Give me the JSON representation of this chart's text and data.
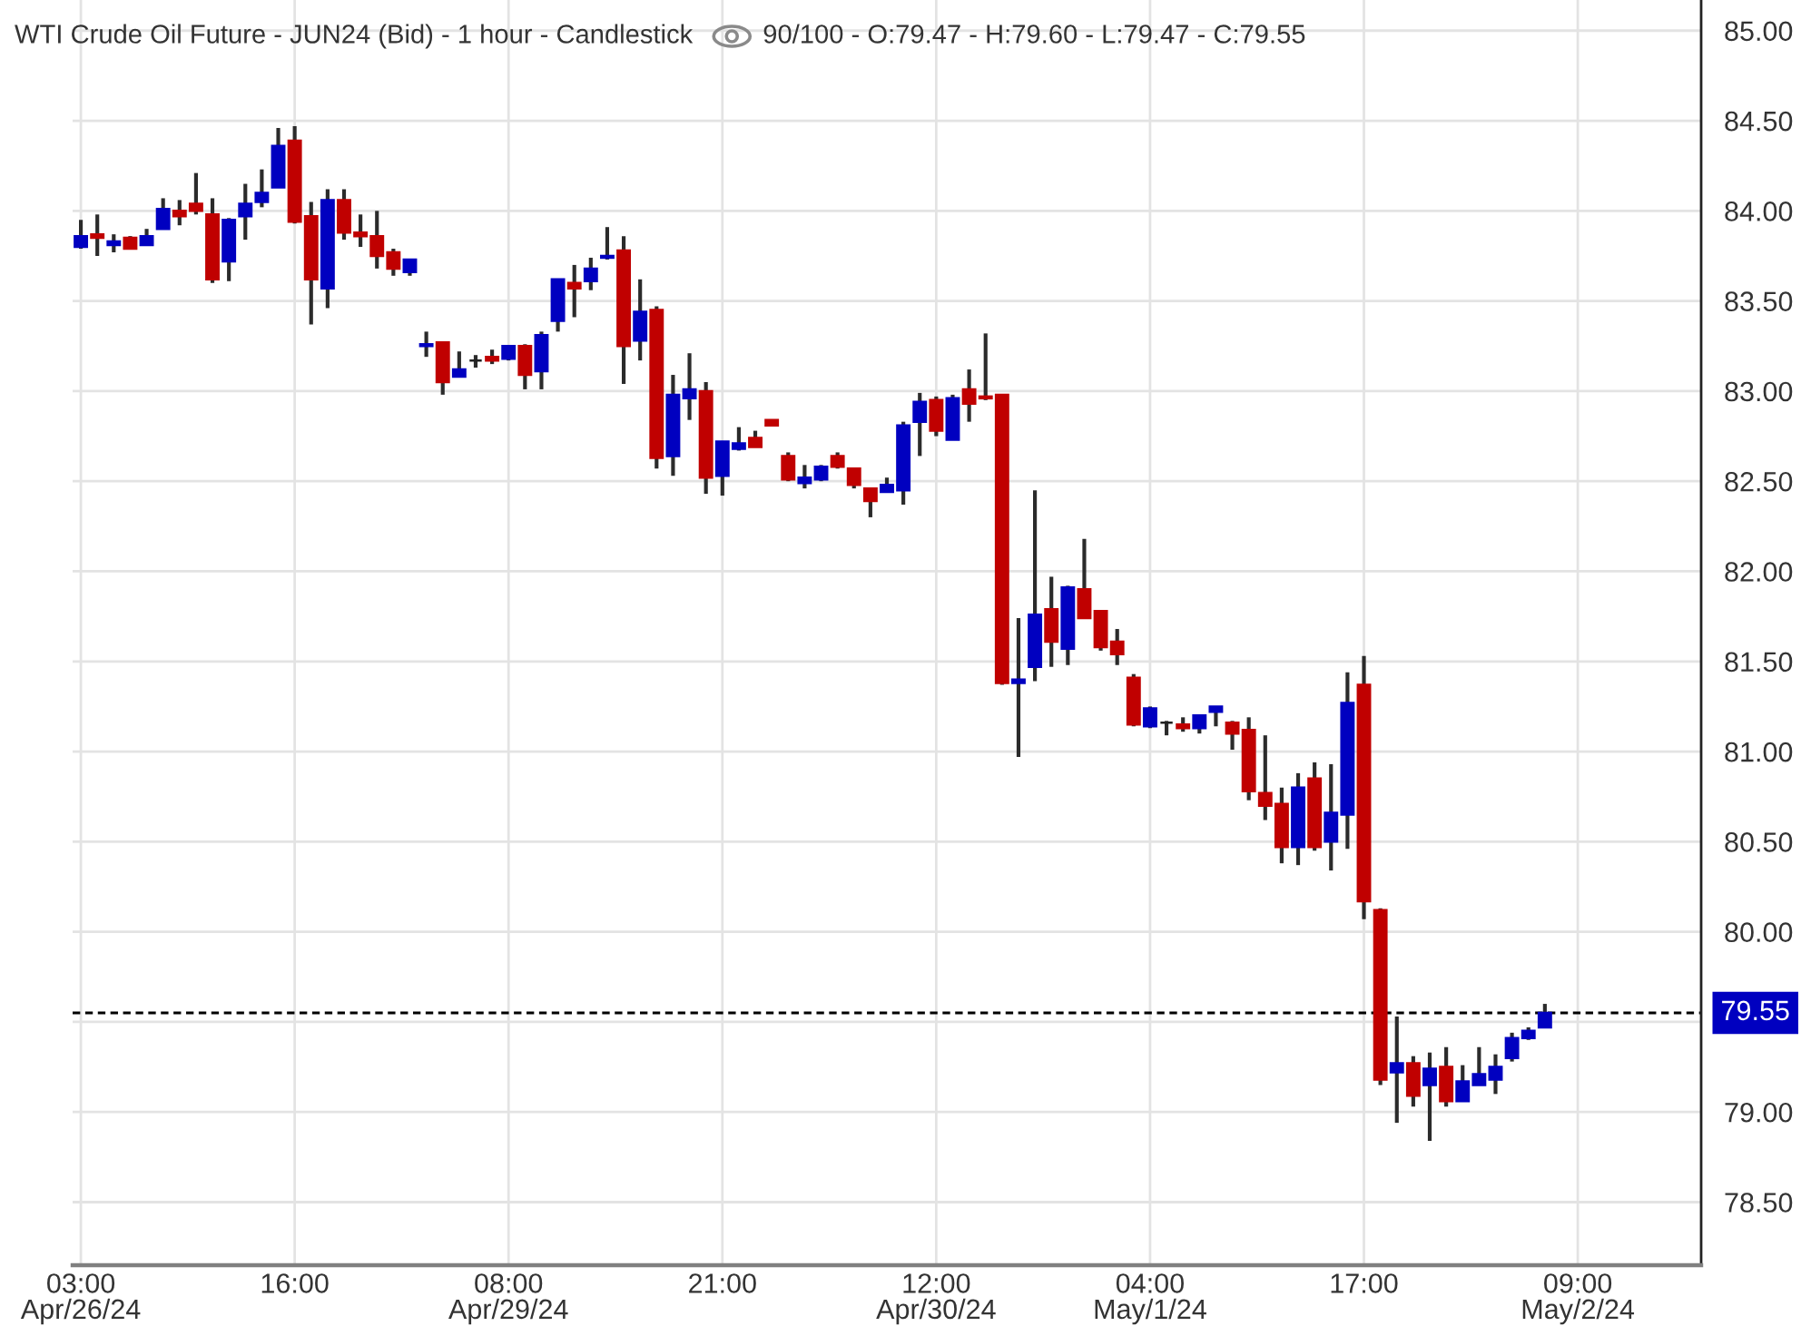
{
  "chart_data": {
    "type": "candlestick",
    "title": "WTI Crude Oil Future - JUN24 (Bid) - 1 hour - Candlestick",
    "subtitle": "90/100 - O:79.47 - H:79.60 - L:79.47 - C:79.55",
    "categories": [
      "03:00\nApr/26/24",
      null,
      null,
      null,
      null,
      null,
      null,
      null,
      null,
      null,
      null,
      null,
      null,
      "16:00",
      null,
      null,
      null,
      null,
      null,
      null,
      null,
      null,
      null,
      null,
      null,
      null,
      "08:00\nApr/29/24",
      null,
      null,
      null,
      null,
      null,
      null,
      null,
      null,
      null,
      null,
      null,
      null,
      "21:00",
      null,
      null,
      null,
      null,
      null,
      null,
      null,
      null,
      null,
      null,
      null,
      null,
      "12:00\nApr/30/24",
      null,
      null,
      null,
      null,
      null,
      null,
      null,
      null,
      null,
      null,
      null,
      null,
      "04:00\nMay/1/24",
      null,
      null,
      null,
      null,
      null,
      null,
      null,
      null,
      null,
      null,
      null,
      null,
      "17:00",
      null,
      null,
      null,
      null,
      null,
      null,
      null,
      null,
      null,
      null,
      null,
      null,
      "09:00\nMay/2/24",
      null,
      null,
      null,
      null,
      null,
      null,
      null
    ],
    "ohlc": [
      [
        83.8,
        83.95,
        83.79,
        83.86
      ],
      [
        83.87,
        83.98,
        83.75,
        83.85
      ],
      [
        83.81,
        83.87,
        83.77,
        83.83
      ],
      [
        83.85,
        83.86,
        83.79,
        83.79
      ],
      [
        83.81,
        83.9,
        83.81,
        83.86
      ],
      [
        83.9,
        84.07,
        83.9,
        84.01
      ],
      [
        84.0,
        84.06,
        83.92,
        83.97
      ],
      [
        84.04,
        84.21,
        83.98,
        84.0
      ],
      [
        83.98,
        84.07,
        83.6,
        83.62
      ],
      [
        83.72,
        83.96,
        83.61,
        83.95
      ],
      [
        83.97,
        84.15,
        83.84,
        84.04
      ],
      [
        84.05,
        84.23,
        84.02,
        84.1
      ],
      [
        84.13,
        84.46,
        84.13,
        84.36
      ],
      [
        84.39,
        84.47,
        83.93,
        83.94
      ],
      [
        83.97,
        84.05,
        83.37,
        83.62
      ],
      [
        83.57,
        84.12,
        83.46,
        84.06
      ],
      [
        84.06,
        84.12,
        83.84,
        83.88
      ],
      [
        83.88,
        83.98,
        83.8,
        83.86
      ],
      [
        83.86,
        84.0,
        83.68,
        83.75
      ],
      [
        83.77,
        83.79,
        83.64,
        83.68
      ],
      [
        83.66,
        83.73,
        83.64,
        83.73
      ],
      [
        83.25,
        83.33,
        83.19,
        83.26
      ],
      [
        83.27,
        83.27,
        82.98,
        83.05
      ],
      [
        83.08,
        83.22,
        83.08,
        83.12
      ],
      [
        83.17,
        83.2,
        83.13,
        83.17
      ],
      [
        83.19,
        83.23,
        83.15,
        83.17
      ],
      [
        83.18,
        83.25,
        83.17,
        83.25
      ],
      [
        83.25,
        83.26,
        83.01,
        83.09
      ],
      [
        83.11,
        83.33,
        83.01,
        83.31
      ],
      [
        83.39,
        83.62,
        83.33,
        83.62
      ],
      [
        83.6,
        83.7,
        83.41,
        83.57
      ],
      [
        83.61,
        83.74,
        83.56,
        83.68
      ],
      [
        83.74,
        83.91,
        83.73,
        83.75
      ],
      [
        83.78,
        83.86,
        83.04,
        83.25
      ],
      [
        83.28,
        83.62,
        83.17,
        83.44
      ],
      [
        83.45,
        83.47,
        82.57,
        82.63
      ],
      [
        82.64,
        83.09,
        82.53,
        82.98
      ],
      [
        82.96,
        83.21,
        82.84,
        83.01
      ],
      [
        83.0,
        83.05,
        82.43,
        82.52
      ],
      [
        82.53,
        82.72,
        82.42,
        82.72
      ],
      [
        82.68,
        82.8,
        82.67,
        82.71
      ],
      [
        82.74,
        82.78,
        82.69,
        82.69
      ],
      [
        82.84,
        82.84,
        82.81,
        82.81
      ],
      [
        82.64,
        82.66,
        82.5,
        82.51
      ],
      [
        82.49,
        82.59,
        82.46,
        82.52
      ],
      [
        82.51,
        82.59,
        82.5,
        82.58
      ],
      [
        82.64,
        82.66,
        82.57,
        82.58
      ],
      [
        82.57,
        82.57,
        82.46,
        82.48
      ],
      [
        82.46,
        82.46,
        82.3,
        82.39
      ],
      [
        82.44,
        82.52,
        82.44,
        82.48
      ],
      [
        82.45,
        82.83,
        82.37,
        82.81
      ],
      [
        82.83,
        82.99,
        82.64,
        82.94
      ],
      [
        82.95,
        82.97,
        82.75,
        82.78
      ],
      [
        82.73,
        82.98,
        82.73,
        82.96
      ],
      [
        83.01,
        83.12,
        82.83,
        82.93
      ],
      [
        82.97,
        83.32,
        82.95,
        82.96
      ],
      [
        82.98,
        82.98,
        81.37,
        81.38
      ],
      [
        81.38,
        81.74,
        80.97,
        81.4
      ],
      [
        81.47,
        82.45,
        81.39,
        81.76
      ],
      [
        81.79,
        81.97,
        81.47,
        81.61
      ],
      [
        81.57,
        81.92,
        81.48,
        81.91
      ],
      [
        81.9,
        82.18,
        81.74,
        81.74
      ],
      [
        81.78,
        81.78,
        81.56,
        81.58
      ],
      [
        81.61,
        81.68,
        81.48,
        81.54
      ],
      [
        81.41,
        81.43,
        81.14,
        81.15
      ],
      [
        81.14,
        81.25,
        81.13,
        81.24
      ],
      [
        81.16,
        81.17,
        81.09,
        81.16
      ],
      [
        81.15,
        81.19,
        81.11,
        81.13
      ],
      [
        81.13,
        81.2,
        81.1,
        81.2
      ],
      [
        81.22,
        81.25,
        81.14,
        81.25
      ],
      [
        81.16,
        81.17,
        81.01,
        81.1
      ],
      [
        81.12,
        81.19,
        80.73,
        80.78
      ],
      [
        80.77,
        81.09,
        80.62,
        80.7
      ],
      [
        80.71,
        80.8,
        80.38,
        80.47
      ],
      [
        80.47,
        80.88,
        80.37,
        80.8
      ],
      [
        80.85,
        80.94,
        80.45,
        80.47
      ],
      [
        80.5,
        80.93,
        80.34,
        80.66
      ],
      [
        80.65,
        81.44,
        80.46,
        81.27
      ],
      [
        81.37,
        81.53,
        80.07,
        80.17
      ],
      [
        80.12,
        80.13,
        79.15,
        79.18
      ],
      [
        79.22,
        79.53,
        78.94,
        79.27
      ],
      [
        79.27,
        79.31,
        79.03,
        79.09
      ],
      [
        79.15,
        79.33,
        78.84,
        79.24
      ],
      [
        79.25,
        79.36,
        79.03,
        79.06
      ],
      [
        79.06,
        79.26,
        79.06,
        79.17
      ],
      [
        79.15,
        79.36,
        79.15,
        79.21
      ],
      [
        79.18,
        79.32,
        79.1,
        79.25
      ],
      [
        79.3,
        79.44,
        79.28,
        79.41
      ],
      [
        79.41,
        79.47,
        79.4,
        79.45
      ],
      [
        79.47,
        79.6,
        79.47,
        79.55
      ],
      null,
      null,
      null,
      null,
      null,
      null,
      null,
      null,
      null
    ],
    "colors": [
      "#0000c0",
      "#c00000",
      "#0000c0",
      "#c00000",
      "#0000c0",
      "#0000c0",
      "#c00000",
      "#c00000",
      "#c00000",
      "#0000c0",
      "#0000c0",
      "#0000c0",
      "#0000c0",
      "#c00000",
      "#c00000",
      "#0000c0",
      "#c00000",
      "#c00000",
      "#c00000",
      "#c00000",
      "#0000c0",
      "#0000c0",
      "#c00000",
      "#0000c0",
      "#202020",
      "#c00000",
      "#0000c0",
      "#c00000",
      "#0000c0",
      "#0000c0",
      "#c00000",
      "#0000c0",
      "#0000c0",
      "#c00000",
      "#0000c0",
      "#c00000",
      "#0000c0",
      "#0000c0",
      "#c00000",
      "#0000c0",
      "#0000c0",
      "#c00000",
      "#c00000",
      "#c00000",
      "#0000c0",
      "#0000c0",
      "#c00000",
      "#c00000",
      "#c00000",
      "#0000c0",
      "#0000c0",
      "#0000c0",
      "#c00000",
      "#0000c0",
      "#c00000",
      "#c00000",
      "#c00000",
      "#0000c0",
      "#0000c0",
      "#c00000",
      "#0000c0",
      "#c00000",
      "#c00000",
      "#c00000",
      "#c00000",
      "#0000c0",
      "#202020",
      "#c00000",
      "#0000c0",
      "#0000c0",
      "#c00000",
      "#c00000",
      "#c00000",
      "#c00000",
      "#0000c0",
      "#c00000",
      "#0000c0",
      "#0000c0",
      "#c00000",
      "#c00000",
      "#0000c0",
      "#c00000",
      "#0000c0",
      "#c00000",
      "#0000c0",
      "#0000c0",
      "#0000c0",
      "#0000c0",
      "#0000c0",
      "#0000c0",
      null,
      null,
      null,
      null,
      null,
      null,
      null,
      null,
      null
    ],
    "ylim": [
      78.15,
      85.17
    ],
    "yticks": [
      {
        "value": 78.5,
        "label": "78.50"
      },
      {
        "value": 79,
        "label": "79.00"
      },
      {
        "value": 79.5,
        "label": null
      },
      {
        "value": 80,
        "label": "80.00"
      },
      {
        "value": 80.5,
        "label": "80.50"
      },
      {
        "value": 81,
        "label": "81.00"
      },
      {
        "value": 81.5,
        "label": "81.50"
      },
      {
        "value": 82,
        "label": "82.00"
      },
      {
        "value": 82.5,
        "label": "82.50"
      },
      {
        "value": 83,
        "label": "83.00"
      },
      {
        "value": 83.5,
        "label": "83.50"
      },
      {
        "value": 84,
        "label": "84.00"
      },
      {
        "value": 84.5,
        "label": "84.50"
      },
      {
        "value": 85,
        "label": "85.00"
      }
    ],
    "ref_lines": [
      {
        "axis": "y",
        "value": 79.55,
        "label": "79.55",
        "color": "#000000",
        "line_style": "dashed"
      }
    ],
    "grid": true
  }
}
